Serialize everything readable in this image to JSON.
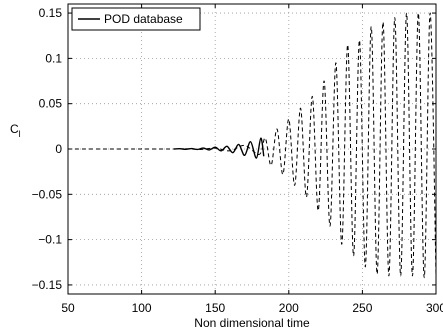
{
  "chart_data": {
    "type": "line",
    "title": "",
    "xlabel": "Non dimensional time",
    "ylabel": "C",
    "ylabel_subscript": "l",
    "xlim": [
      50,
      300
    ],
    "ylim": [
      -0.16,
      0.16
    ],
    "grid": true,
    "legend_position": "top-left",
    "x_ticks": [
      50,
      100,
      150,
      200,
      250,
      300
    ],
    "y_ticks": [
      -0.15,
      -0.1,
      -0.05,
      0,
      0.05,
      0.1,
      0.15
    ],
    "x_tick_labels": [
      "50",
      "100",
      "150",
      "200",
      "250",
      "300"
    ],
    "y_tick_labels": [
      "−0.15",
      "−0.1",
      "−0.05",
      "0",
      "0.05",
      "0.1",
      "0.15"
    ],
    "series": [
      {
        "name": "POD database",
        "style": "solid",
        "color": "#000000",
        "points": [
          [
            122,
            0.0
          ],
          [
            126,
            0.0003
          ],
          [
            130,
            -0.0003
          ],
          [
            134,
            0.0005
          ],
          [
            138,
            -0.0005
          ],
          [
            142,
            0.001
          ],
          [
            146,
            -0.001
          ],
          [
            150,
            0.002
          ],
          [
            154,
            -0.002
          ],
          [
            158,
            0.003
          ],
          [
            162,
            -0.004
          ],
          [
            166,
            0.005
          ],
          [
            170,
            -0.007
          ],
          [
            174,
            0.008
          ],
          [
            178,
            -0.01
          ],
          [
            181,
            0.012
          ],
          [
            183,
            -0.008
          ]
        ]
      },
      {
        "name": "",
        "style": "dashed",
        "color": "#000000",
        "points": [
          [
            50,
            0
          ],
          [
            122,
            0
          ],
          [
            130,
            0.0003
          ],
          [
            140,
            -0.0005
          ],
          [
            150,
            0.001
          ],
          [
            160,
            -0.002
          ],
          [
            170,
            0.004
          ],
          [
            180,
            -0.006
          ],
          [
            184,
            0.012
          ],
          [
            188,
            -0.018
          ],
          [
            192,
            0.022
          ],
          [
            196,
            -0.028
          ],
          [
            200,
            0.033
          ],
          [
            204,
            -0.04
          ],
          [
            208,
            0.045
          ],
          [
            212,
            -0.053
          ],
          [
            216,
            0.058
          ],
          [
            220,
            -0.068
          ],
          [
            224,
            0.075
          ],
          [
            228,
            -0.085
          ],
          [
            232,
            0.095
          ],
          [
            236,
            -0.105
          ],
          [
            240,
            0.115
          ],
          [
            244,
            -0.118
          ],
          [
            248,
            0.12
          ],
          [
            252,
            -0.13
          ],
          [
            256,
            0.135
          ],
          [
            260,
            -0.138
          ],
          [
            264,
            0.14
          ],
          [
            268,
            -0.14
          ],
          [
            272,
            0.145
          ],
          [
            276,
            -0.14
          ],
          [
            280,
            0.15
          ],
          [
            284,
            -0.14
          ],
          [
            288,
            0.15
          ],
          [
            292,
            -0.142
          ],
          [
            296,
            0.15
          ],
          [
            300,
            -0.14
          ]
        ]
      }
    ]
  }
}
